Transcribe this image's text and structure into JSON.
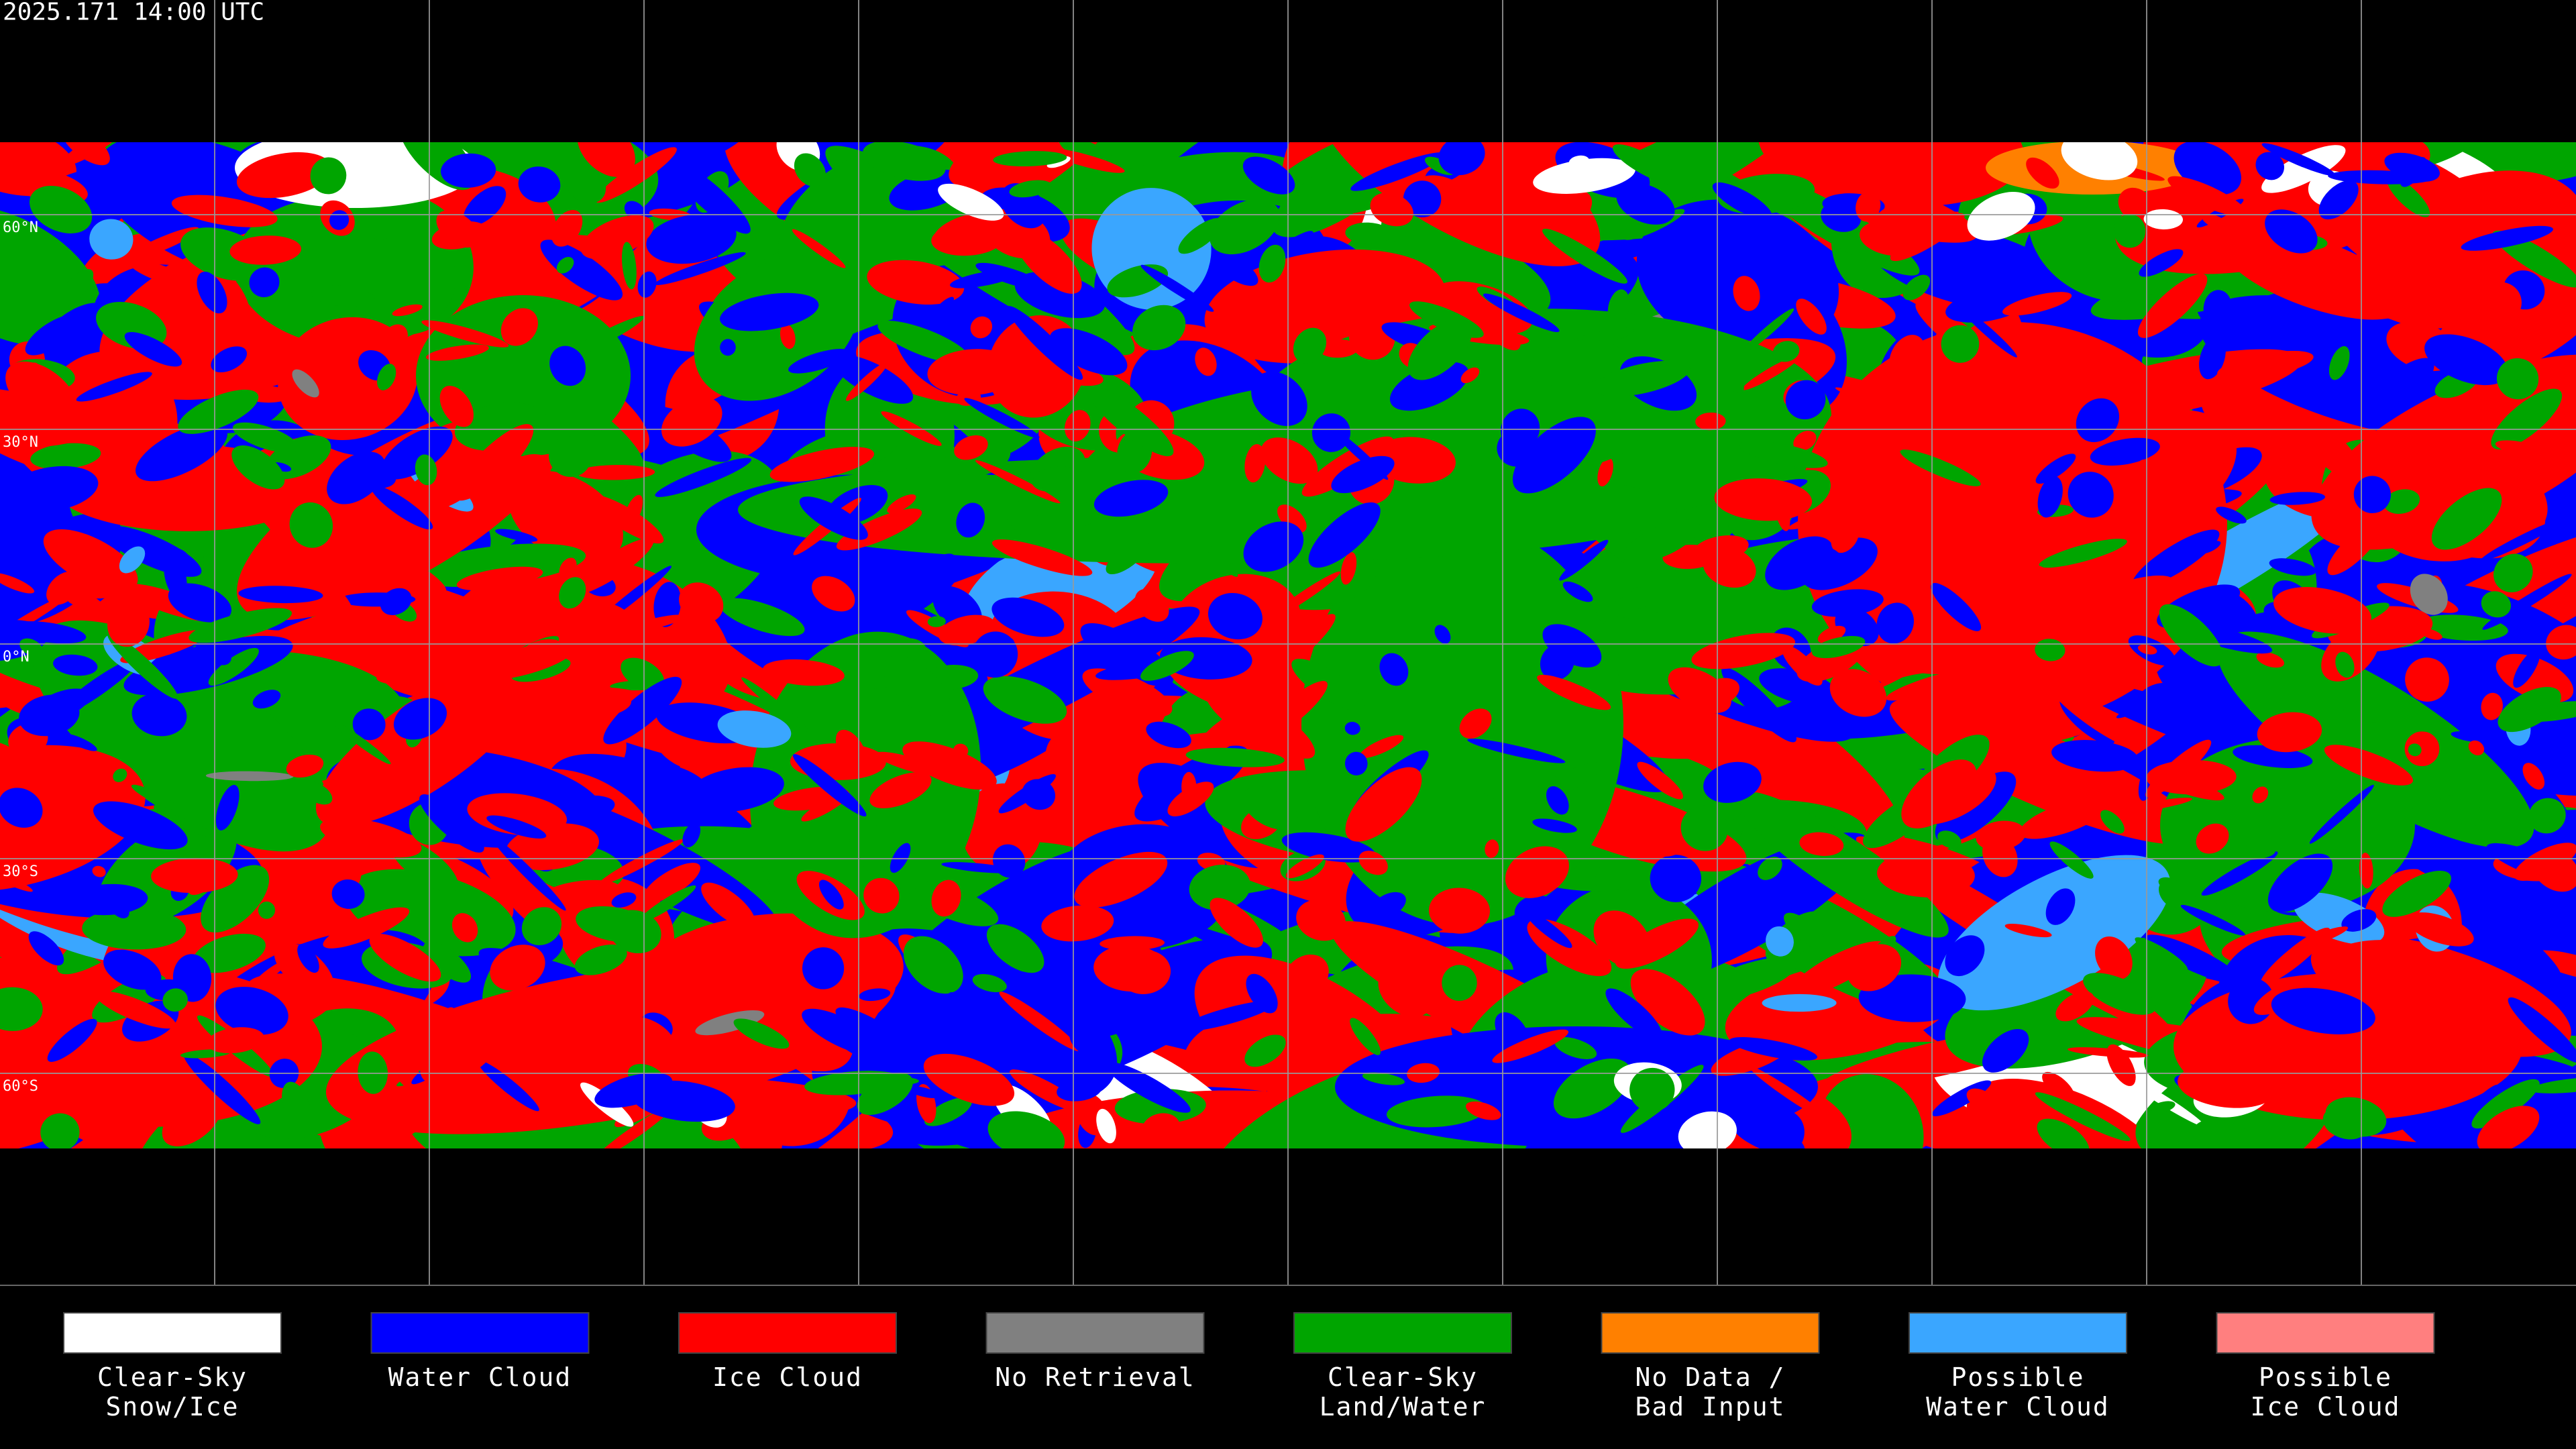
{
  "header": {
    "title": "2025.171 14:00 UTC"
  },
  "map": {
    "latitude_labels": [
      "60°N",
      "30°N",
      "0°N",
      "30°S",
      "60°S"
    ]
  },
  "legend": {
    "items": [
      {
        "label": [
          "Clear-Sky",
          "Snow/Ice"
        ],
        "color": "#ffffff"
      },
      {
        "label": [
          "Water Cloud"
        ],
        "color": "#0000ff"
      },
      {
        "label": [
          "Ice Cloud"
        ],
        "color": "#ff0000"
      },
      {
        "label": [
          "No Retrieval"
        ],
        "color": "#808080"
      },
      {
        "label": [
          "Clear-Sky",
          "Land/Water"
        ],
        "color": "#00a500"
      },
      {
        "label": [
          "No Data /",
          "Bad Input"
        ],
        "color": "#ff8000"
      },
      {
        "label": [
          "Possible",
          "Water Cloud"
        ],
        "color": "#3aa6ff"
      },
      {
        "label": [
          "Possible",
          "Ice Cloud"
        ],
        "color": "#ff7f7f"
      }
    ]
  }
}
